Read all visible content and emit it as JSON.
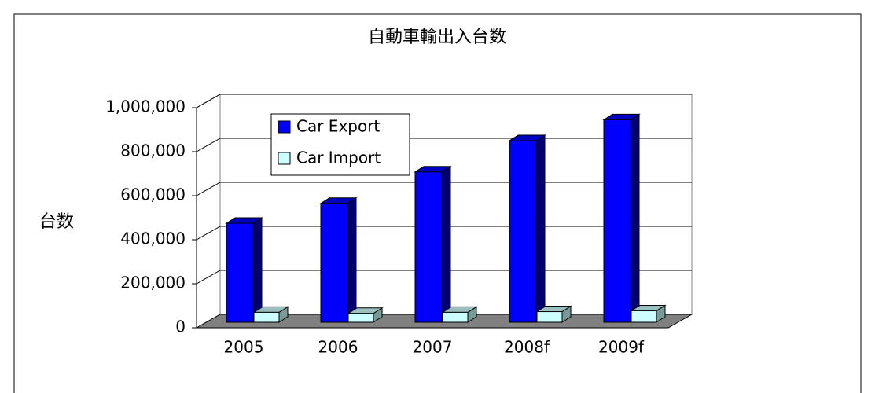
{
  "chart_data": {
    "type": "bar3d",
    "title": "自動車輸出入台数",
    "y_label": "台数",
    "categories": [
      "2005",
      "2006",
      "2007",
      "2008f",
      "2009f"
    ],
    "series": [
      {
        "name": "Car Export",
        "color": "#0000ff",
        "values": [
          450000,
          540000,
          683000,
          825000,
          920000
        ]
      },
      {
        "name": "Car Import",
        "color": "#ccffff",
        "values": [
          45000,
          40000,
          45000,
          48000,
          52000
        ]
      }
    ],
    "ylim": [
      0,
      1000000
    ],
    "yticks": [
      0,
      {
        "value": 200000,
        "label": "200,000"
      },
      {
        "value": 400000,
        "label": "400,000"
      },
      {
        "value": 600000,
        "label": "600,000"
      },
      {
        "value": 800000,
        "label": "800,000"
      },
      {
        "value": 1000000,
        "label": "1,000,000"
      }
    ],
    "grid": true
  }
}
